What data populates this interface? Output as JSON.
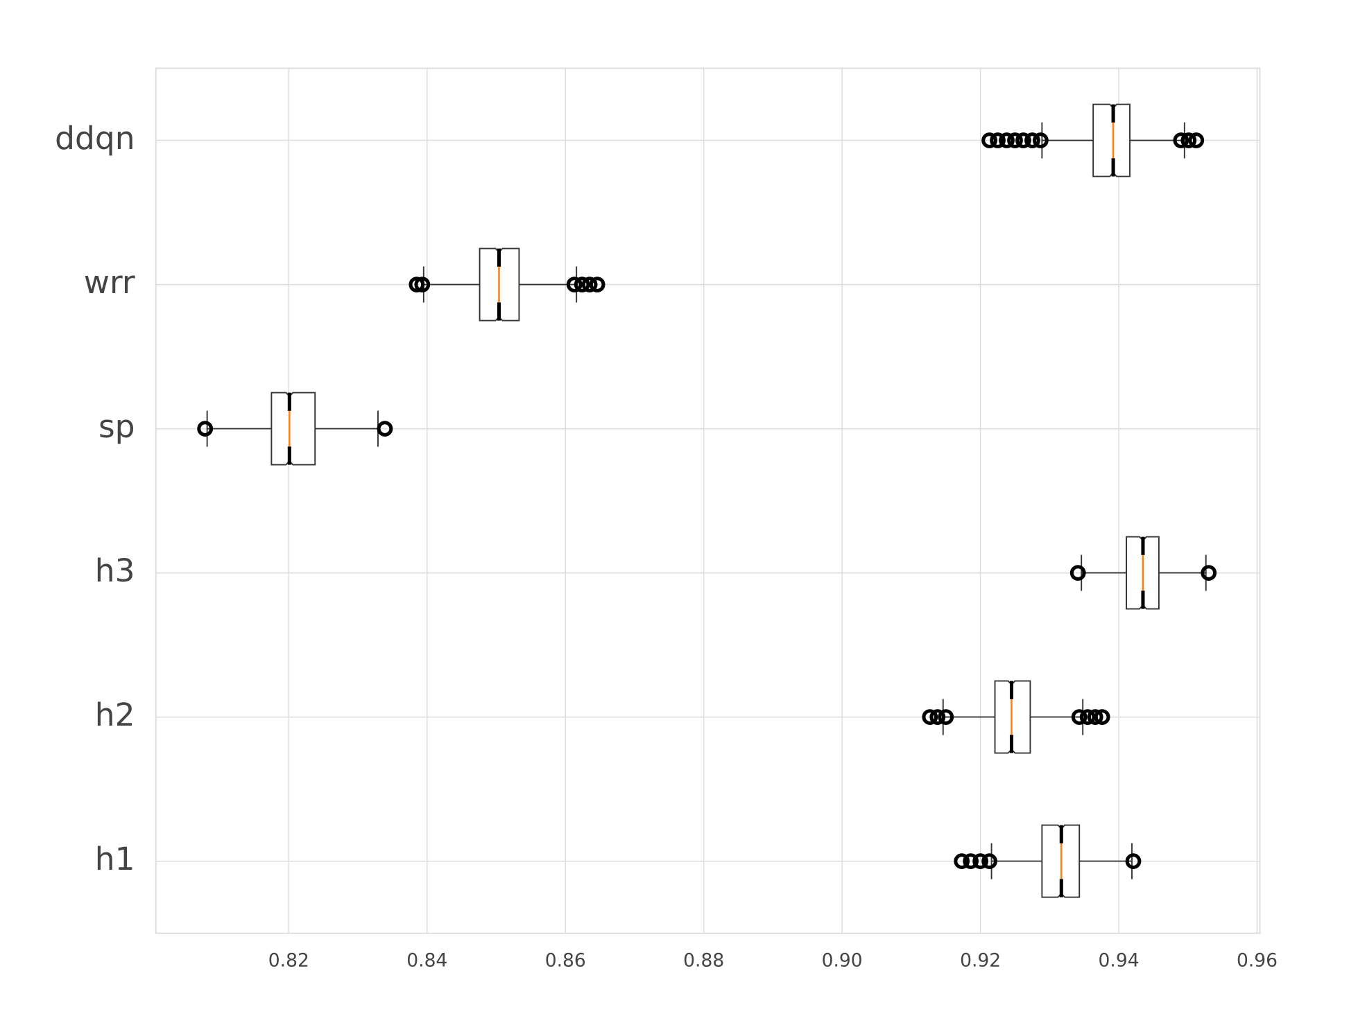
{
  "chart_data": {
    "type": "boxplot",
    "orientation": "horizontal",
    "categories": [
      "h1",
      "h2",
      "h3",
      "sp",
      "wrr",
      "ddqn"
    ],
    "boxes": [
      {
        "whislo": 0.9216,
        "q1": 0.9289,
        "notch_lo": 0.9312,
        "med": 0.9317,
        "notch_hi": 0.9322,
        "q3": 0.9343,
        "whishi": 0.9419,
        "fliers": [
          0.9173,
          0.9186,
          0.92,
          0.9213,
          0.9421
        ]
      },
      {
        "whislo": 0.9146,
        "q1": 0.9221,
        "notch_lo": 0.924,
        "med": 0.9245,
        "notch_hi": 0.925,
        "q3": 0.9272,
        "whishi": 0.9348,
        "fliers": [
          0.9127,
          0.9138,
          0.915,
          0.9343,
          0.9355,
          0.9366,
          0.9376
        ]
      },
      {
        "whislo": 0.9346,
        "q1": 0.9411,
        "notch_lo": 0.943,
        "med": 0.9435,
        "notch_hi": 0.944,
        "q3": 0.9458,
        "whishi": 0.9526,
        "fliers": [
          0.9341,
          0.953
        ]
      },
      {
        "whislo": 0.8082,
        "q1": 0.8175,
        "notch_lo": 0.8196,
        "med": 0.8201,
        "notch_hi": 0.8206,
        "q3": 0.8238,
        "whishi": 0.8329,
        "fliers": [
          0.8079,
          0.8339
        ]
      },
      {
        "whislo": 0.8395,
        "q1": 0.8476,
        "notch_lo": 0.8499,
        "med": 0.8504,
        "notch_hi": 0.8509,
        "q3": 0.8533,
        "whishi": 0.8616,
        "fliers": [
          0.8385,
          0.8393,
          0.8613,
          0.8624,
          0.8635,
          0.8646
        ]
      },
      {
        "whislo": 0.9289,
        "q1": 0.9363,
        "notch_lo": 0.9387,
        "med": 0.9392,
        "notch_hi": 0.9397,
        "q3": 0.9416,
        "whishi": 0.9495,
        "fliers": [
          0.9213,
          0.9225,
          0.9238,
          0.925,
          0.9262,
          0.9275,
          0.9287,
          0.949,
          0.9501,
          0.9512
        ]
      }
    ],
    "xlim": [
      0.8008,
      0.9604
    ],
    "xticks": [
      0.82,
      0.84,
      0.86,
      0.88,
      {
        "value": 0.9,
        "label": "0.90"
      },
      0.92,
      0.94,
      0.96
    ],
    "grid": true,
    "box_color": "#333333",
    "median_color": "#ff7f0e"
  }
}
